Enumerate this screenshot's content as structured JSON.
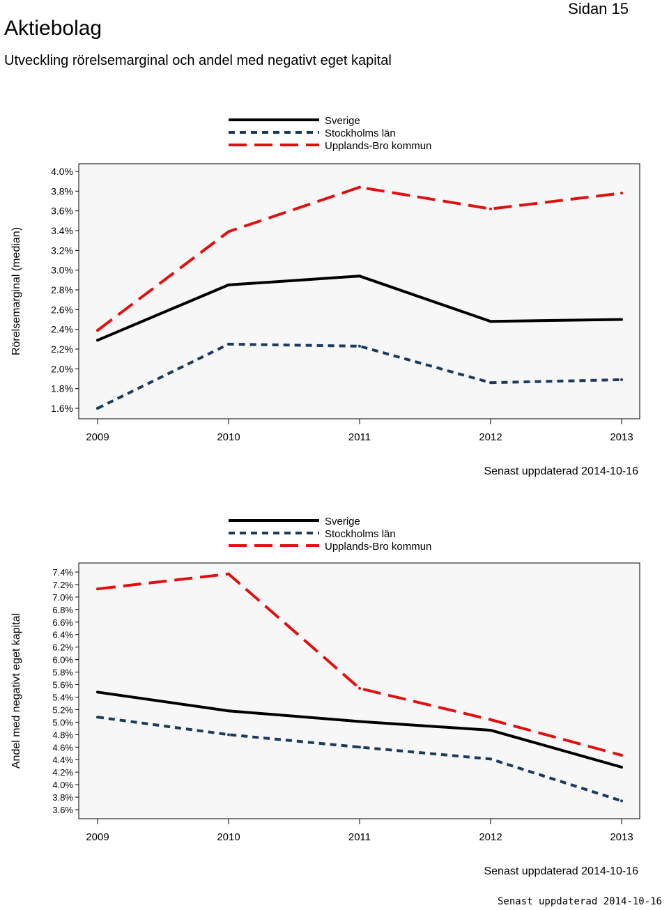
{
  "header": {
    "page": "Sidan 15",
    "title": "Aktiebolag",
    "subtitle": "Utveckling rörelsemarginal och andel med negativt eget kapital"
  },
  "footer": {
    "mono_text": "Senast uppdaterad 2014-10-16"
  },
  "series_style": {
    "Sverige": {
      "color": "#000000",
      "dash": ""
    },
    "Stockholms län": {
      "color": "#1b3a5c",
      "dash": "9,7"
    },
    "Upplands-Bro kommun": {
      "color": "#e01010",
      "dash": "26,11"
    }
  },
  "chart_data": [
    {
      "type": "line",
      "ylabel": "Rörelsemarginal (median)",
      "x": [
        "2009",
        "2010",
        "2011",
        "2012",
        "2013"
      ],
      "ylim": [
        1.6,
        4.0
      ],
      "yticks": [
        "4.0%",
        "3.8%",
        "3.6%",
        "3.4%",
        "3.2%",
        "3.0%",
        "2.8%",
        "2.6%",
        "2.4%",
        "2.2%",
        "2.0%",
        "1.8%",
        "1.6%"
      ],
      "series": [
        {
          "name": "Sverige",
          "values": [
            2.29,
            2.85,
            2.94,
            2.48,
            2.5
          ]
        },
        {
          "name": "Stockholms län",
          "values": [
            1.6,
            2.25,
            2.23,
            1.86,
            1.89
          ]
        },
        {
          "name": "Upplands-Bro kommun",
          "values": [
            2.39,
            3.39,
            3.84,
            3.62,
            3.78
          ]
        }
      ],
      "legend": [
        "Sverige",
        "Stockholms län",
        "Upplands-Bro kommun"
      ],
      "updated": "Senast uppdaterad 2014-10-16"
    },
    {
      "type": "line",
      "ylabel": "Andel med negativt eget kapital",
      "x": [
        "2009",
        "2010",
        "2011",
        "2012",
        "2013"
      ],
      "ylim": [
        3.6,
        7.4
      ],
      "yticks": [
        "7.4%",
        "7.2%",
        "7.0%",
        "6.8%",
        "6.6%",
        "6.4%",
        "6.2%",
        "6.0%",
        "5.8%",
        "5.6%",
        "5.4%",
        "5.2%",
        "5.0%",
        "4.8%",
        "4.6%",
        "4.4%",
        "4.2%",
        "4.0%",
        "3.8%",
        "3.6%"
      ],
      "series": [
        {
          "name": "Sverige",
          "values": [
            5.48,
            5.18,
            5.01,
            4.87,
            4.28
          ]
        },
        {
          "name": "Stockholms län",
          "values": [
            5.08,
            4.8,
            4.6,
            4.41,
            3.74
          ]
        },
        {
          "name": "Upplands-Bro kommun",
          "values": [
            7.13,
            7.37,
            5.54,
            5.04,
            4.47
          ]
        }
      ],
      "legend": [
        "Sverige",
        "Stockholms län",
        "Upplands-Bro kommun"
      ],
      "updated": "Senast uppdaterad 2014-10-16"
    }
  ]
}
